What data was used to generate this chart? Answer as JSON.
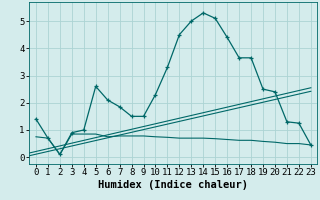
{
  "xlabel": "Humidex (Indice chaleur)",
  "bg_color": "#d4ecec",
  "grid_color": "#acd4d4",
  "line_color": "#006868",
  "x_values": [
    0,
    1,
    2,
    3,
    4,
    5,
    6,
    7,
    8,
    9,
    10,
    11,
    12,
    13,
    14,
    15,
    16,
    17,
    18,
    19,
    20,
    21,
    22,
    23
  ],
  "series_main": [
    1.4,
    0.7,
    0.1,
    0.9,
    1.0,
    2.6,
    2.1,
    1.85,
    1.5,
    1.5,
    2.3,
    3.3,
    4.5,
    5.0,
    5.3,
    5.1,
    4.4,
    3.65,
    3.65,
    2.5,
    2.4,
    1.3,
    1.25,
    0.45
  ],
  "series_flat": [
    0.75,
    0.7,
    0.1,
    0.85,
    0.85,
    0.85,
    0.75,
    0.78,
    0.78,
    0.78,
    0.75,
    0.73,
    0.7,
    0.7,
    0.7,
    0.68,
    0.65,
    0.62,
    0.62,
    0.58,
    0.55,
    0.5,
    0.5,
    0.45
  ],
  "trend1_start": 0.15,
  "trend1_end": 2.55,
  "trend2_start": 0.05,
  "trend2_end": 2.42,
  "ylim_min": -0.25,
  "ylim_max": 5.7,
  "xlim_min": -0.6,
  "xlim_max": 23.5,
  "yticks": [
    0,
    1,
    2,
    3,
    4,
    5
  ],
  "xticks": [
    0,
    1,
    2,
    3,
    4,
    5,
    6,
    7,
    8,
    9,
    10,
    11,
    12,
    13,
    14,
    15,
    16,
    17,
    18,
    19,
    20,
    21,
    22,
    23
  ],
  "xlabel_fontsize": 7.5,
  "tick_fontsize": 6.5
}
